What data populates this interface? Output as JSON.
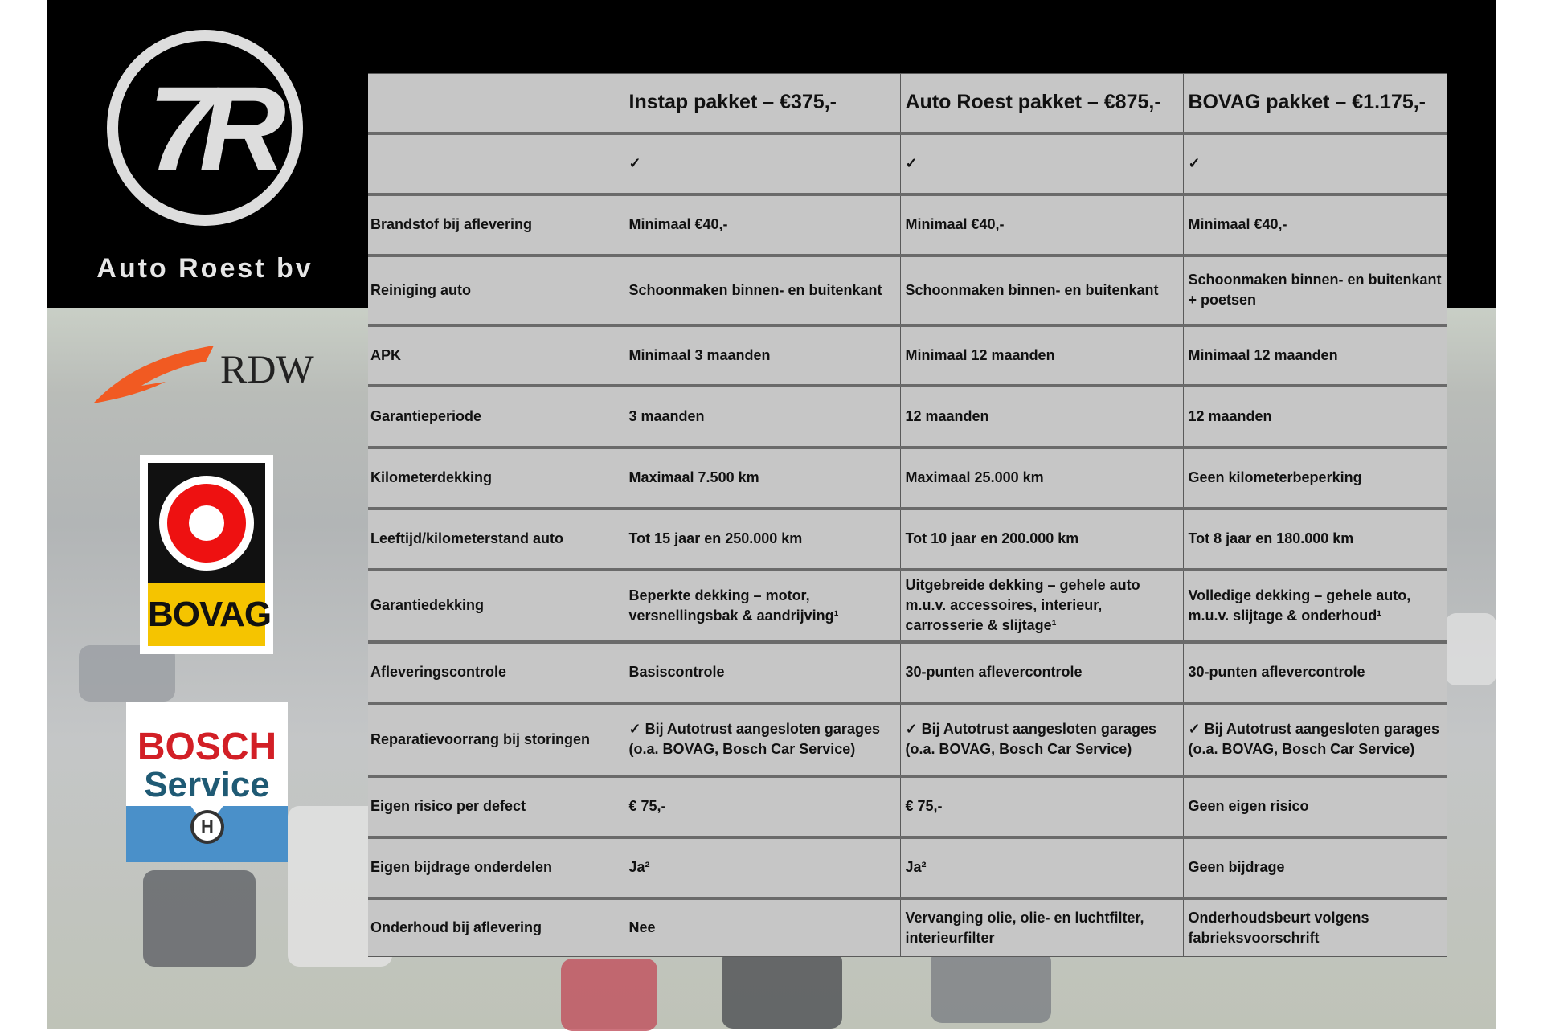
{
  "brand": {
    "name": "Auto Roest bv",
    "logo_mark": "7R"
  },
  "partner_logos": {
    "rdw": "RDW",
    "bovag": "BOVAG",
    "bosch_line1": "BOSCH",
    "bosch_line2": "Service"
  },
  "table": {
    "headers": [
      "",
      "Instap pakket – €375,-",
      "Auto Roest pakket – €875,-",
      "BOVAG pakket – €1.175,-"
    ],
    "rows": [
      [
        "",
        "✓",
        "✓",
        "✓"
      ],
      [
        "Brandstof bij aflevering",
        "Minimaal €40,-",
        "Minimaal €40,-",
        "Minimaal €40,-"
      ],
      [
        "Reiniging auto",
        "Schoonmaken binnen- en buitenkant",
        "Schoonmaken binnen- en buitenkant",
        "Schoonmaken binnen- en buitenkant + poetsen"
      ],
      [
        "APK",
        "Minimaal 3 maanden",
        "Minimaal 12 maanden",
        "Minimaal 12 maanden"
      ],
      [
        "Garantieperiode",
        "3 maanden",
        "12 maanden",
        "12 maanden"
      ],
      [
        "Kilometerdekking",
        "Maximaal 7.500 km",
        "Maximaal 25.000 km",
        "Geen kilometerbeperking"
      ],
      [
        "Leeftijd/kilometerstand auto",
        "Tot 15 jaar en 250.000 km",
        "Tot 10 jaar en 200.000 km",
        "Tot 8 jaar en 180.000 km"
      ],
      [
        "Garantiedekking",
        "Beperkte dekking – motor, versnellingsbak & aandrijving¹",
        "Uitgebreide dekking – gehele auto m.u.v. accessoires, interieur, carrosserie & slijtage¹",
        "Volledige dekking – gehele auto, m.u.v. slijtage & onderhoud¹"
      ],
      [
        "Afleveringscontrole",
        "Basiscontrole",
        "30-punten aflevercontrole",
        "30-punten aflevercontrole"
      ],
      [
        "Reparatievoorrang bij storingen",
        "✓ Bij Autotrust aangesloten garages (o.a. BOVAG, Bosch Car Service)",
        "✓ Bij Autotrust aangesloten garages (o.a. BOVAG, Bosch Car Service)",
        "✓ Bij Autotrust aangesloten garages (o.a. BOVAG, Bosch Car Service)"
      ],
      [
        "Eigen risico per defect",
        "€ 75,-",
        "€ 75,-",
        "Geen eigen risico"
      ],
      [
        "Eigen bijdrage onderdelen",
        "Ja²",
        "Ja²",
        "Geen bijdrage"
      ],
      [
        "Onderhoud bij aflevering",
        "Nee",
        "Vervanging olie, olie- en luchtfilter, interieurfilter",
        "Onderhoudsbeurt volgens fabrieksvoorschrift"
      ]
    ]
  }
}
